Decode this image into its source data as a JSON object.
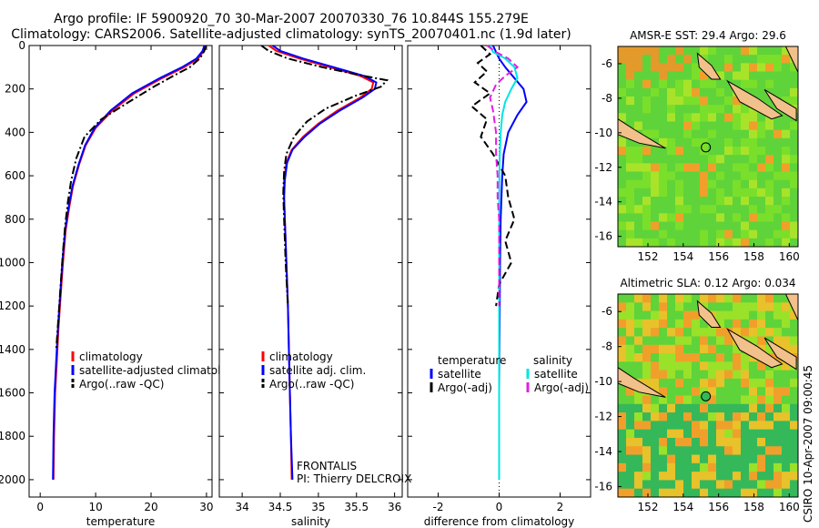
{
  "figure": {
    "title_line1": "Argo profile: IF 5900920_70 30-Mar-2007 20070330_76 10.844S 155.279E",
    "title_line2": "Climatology: CARS2006. Satellite-adjusted climatology: synTS_20070401.nc (1.9d later)",
    "side_label": "CSIRO 10-Apr-2007 09:00:45",
    "pi_label_1": "FRONTALIS",
    "pi_label_2": "PI: Thierry DELCROIX"
  },
  "colors": {
    "climatology": "#ff0000",
    "satellite": "#0000ff",
    "argo": "#000000",
    "sal_satellite": "#00e5e5",
    "sal_argo": "#e020e0"
  },
  "chart_data": [
    {
      "type": "line",
      "panel": "temperature",
      "xlabel": "temperature",
      "ylabel": "",
      "xlim": [
        -2,
        31
      ],
      "ylim": [
        0,
        2080
      ],
      "xticks": [
        0,
        10,
        20,
        30
      ],
      "yticks": [
        0,
        200,
        400,
        600,
        800,
        1000,
        1200,
        1400,
        1600,
        1800,
        2000
      ],
      "legend": [
        "climatology",
        "satellite-adjusted climatology",
        "Argo(..raw -QC)"
      ],
      "legend_position": "lower-left",
      "series": [
        {
          "name": "climatology",
          "style": "solid",
          "color": "#ff0000",
          "x": [
            29.8,
            29.5,
            28.5,
            26.0,
            22.0,
            17.0,
            13.0,
            10.0,
            8.2,
            7.0,
            5.9,
            5.2,
            4.6,
            4.1,
            3.7,
            3.3,
            3.0,
            2.7,
            2.5,
            2.4
          ],
          "y": [
            0,
            25,
            60,
            100,
            150,
            220,
            300,
            380,
            460,
            550,
            650,
            750,
            850,
            1000,
            1150,
            1300,
            1450,
            1600,
            1800,
            2000
          ]
        },
        {
          "name": "satellite-adjusted climatology",
          "style": "solid",
          "color": "#0000ff",
          "x": [
            29.6,
            29.3,
            28.2,
            25.6,
            21.6,
            16.6,
            12.7,
            9.8,
            8.1,
            6.9,
            5.8,
            5.1,
            4.5,
            4.0,
            3.6,
            3.2,
            2.9,
            2.6,
            2.4,
            2.3
          ],
          "y": [
            0,
            25,
            60,
            100,
            150,
            220,
            300,
            380,
            460,
            550,
            650,
            750,
            850,
            1000,
            1150,
            1300,
            1450,
            1600,
            1800,
            2000
          ]
        },
        {
          "name": "Argo(..raw -QC)",
          "style": "dashdot",
          "color": "#000000",
          "x": [
            29.9,
            29.6,
            28.8,
            27.0,
            24.0,
            20.5,
            16.0,
            11.0,
            8.0,
            6.5,
            5.6,
            5.0,
            4.5,
            4.1,
            3.7,
            3.3,
            2.9
          ],
          "y": [
            0,
            25,
            60,
            100,
            140,
            190,
            260,
            340,
            420,
            520,
            620,
            720,
            830,
            950,
            1100,
            1250,
            1400
          ]
        }
      ]
    },
    {
      "type": "line",
      "panel": "salinity",
      "xlabel": "salinity",
      "ylabel": "",
      "xlim": [
        33.7,
        36.1
      ],
      "ylim": [
        0,
        2080
      ],
      "xticks": [
        34,
        34.5,
        35,
        35.5,
        36
      ],
      "legend": [
        "climatology",
        "satellite adj. clim.",
        "Argo(..raw -QC)"
      ],
      "legend_position": "lower-left",
      "series": [
        {
          "name": "climatology",
          "style": "solid",
          "color": "#ff0000",
          "x": [
            34.35,
            34.45,
            34.75,
            35.15,
            35.55,
            35.72,
            35.7,
            35.55,
            35.25,
            35.0,
            34.8,
            34.65,
            34.58,
            34.55,
            34.55,
            34.56,
            34.58,
            34.6,
            34.62,
            34.64,
            34.65
          ],
          "y": [
            0,
            25,
            60,
            100,
            140,
            170,
            200,
            240,
            300,
            360,
            420,
            480,
            540,
            620,
            700,
            800,
            1000,
            1200,
            1500,
            1800,
            2000
          ]
        },
        {
          "name": "satellite adj. clim.",
          "style": "solid",
          "color": "#0000ff",
          "x": [
            34.4,
            34.5,
            34.8,
            35.2,
            35.6,
            35.76,
            35.74,
            35.58,
            35.28,
            35.02,
            34.82,
            34.66,
            34.59,
            34.56,
            34.55,
            34.56,
            34.58,
            34.6,
            34.62,
            34.64,
            34.66
          ],
          "y": [
            0,
            25,
            60,
            100,
            140,
            170,
            200,
            240,
            300,
            360,
            420,
            480,
            540,
            620,
            700,
            800,
            1000,
            1200,
            1500,
            1800,
            2000
          ]
        },
        {
          "name": "Argo(..raw -QC)",
          "style": "dashdot",
          "color": "#000000",
          "x": [
            34.25,
            34.35,
            34.6,
            35.05,
            35.6,
            35.9,
            35.82,
            35.5,
            35.1,
            34.85,
            34.68,
            34.58,
            34.55,
            34.54,
            34.55,
            34.57,
            34.6
          ],
          "y": [
            0,
            25,
            60,
            100,
            140,
            160,
            190,
            230,
            290,
            350,
            420,
            500,
            580,
            680,
            800,
            1000,
            1200
          ]
        }
      ]
    },
    {
      "type": "line",
      "panel": "difference",
      "xlabel": "difference from climatology",
      "ylabel": "",
      "xlim": [
        -3,
        3
      ],
      "ylim": [
        0,
        2080
      ],
      "xticks": [
        -2,
        0,
        2
      ],
      "legend": [
        "temperature",
        "satellite",
        "Argo(-adj)",
        "salinity",
        "satellite",
        "Argo(-adj)"
      ],
      "legend_position": "lower-center",
      "series": [
        {
          "name": "temperature satellite",
          "style": "solid",
          "color": "#0000ff",
          "x": [
            -0.2,
            -0.1,
            0.0,
            0.2,
            0.5,
            0.8,
            0.9,
            0.6,
            0.3,
            0.15,
            0.1,
            0.05,
            0.03,
            0.02,
            0.01,
            0.0,
            0.0,
            0.0
          ],
          "y": [
            0,
            30,
            60,
            100,
            150,
            200,
            260,
            320,
            400,
            500,
            600,
            800,
            1000,
            1200,
            1400,
            1600,
            1800,
            2000
          ]
        },
        {
          "name": "temperature Argo(-adj)",
          "style": "dashed",
          "color": "#000000",
          "x": [
            -0.6,
            -0.3,
            -0.7,
            -0.4,
            -0.8,
            -0.3,
            -0.9,
            -0.4,
            -0.6,
            -0.2,
            0.2,
            0.3,
            0.5,
            0.2,
            0.4,
            0.0,
            -0.1
          ],
          "y": [
            0,
            40,
            80,
            120,
            170,
            220,
            280,
            340,
            420,
            500,
            600,
            700,
            800,
            900,
            1000,
            1100,
            1200
          ]
        },
        {
          "name": "salinity satellite",
          "style": "solid",
          "color": "#00e5e5",
          "x": [
            -0.3,
            -0.2,
            0.2,
            0.5,
            0.6,
            0.4,
            0.2,
            0.1,
            0.05,
            0.02,
            0.01,
            0.0,
            0.0,
            0.0,
            0.0,
            0.0,
            0.0,
            0.0
          ],
          "y": [
            0,
            30,
            60,
            100,
            150,
            200,
            260,
            320,
            400,
            500,
            600,
            800,
            1000,
            1200,
            1400,
            1600,
            1800,
            2000
          ]
        },
        {
          "name": "salinity Argo(-adj)",
          "style": "dashed",
          "color": "#e020e0",
          "x": [
            -0.4,
            -0.1,
            0.3,
            0.6,
            0.2,
            -0.1,
            -0.3,
            -0.2,
            -0.1,
            -0.1,
            -0.05,
            -0.05,
            0.0,
            0.0,
            0.0,
            0.0,
            0.0
          ],
          "y": [
            0,
            30,
            60,
            100,
            140,
            180,
            240,
            300,
            400,
            500,
            600,
            700,
            800,
            900,
            1000,
            1100,
            1200
          ]
        }
      ]
    },
    {
      "type": "heatmap",
      "panel": "map-sst",
      "title": "AMSR-E SST: 29.4  Argo: 29.6",
      "xlim": [
        150.3,
        160.5
      ],
      "ylim": [
        -16.6,
        -5.0
      ],
      "xticks": [
        152,
        154,
        156,
        158,
        160
      ],
      "yticks": [
        -6,
        -8,
        -10,
        -12,
        -14,
        -16
      ],
      "marker": {
        "lon": 155.279,
        "lat": -10.844
      }
    },
    {
      "type": "heatmap",
      "panel": "map-sla",
      "title": "Altimetric SLA: 0.12  Argo: 0.034",
      "xlim": [
        150.3,
        160.5
      ],
      "ylim": [
        -16.6,
        -5.0
      ],
      "xticks": [
        152,
        154,
        156,
        158,
        160
      ],
      "yticks": [
        -6,
        -8,
        -10,
        -12,
        -14,
        -16
      ],
      "marker": {
        "lon": 155.279,
        "lat": -10.844
      }
    }
  ]
}
